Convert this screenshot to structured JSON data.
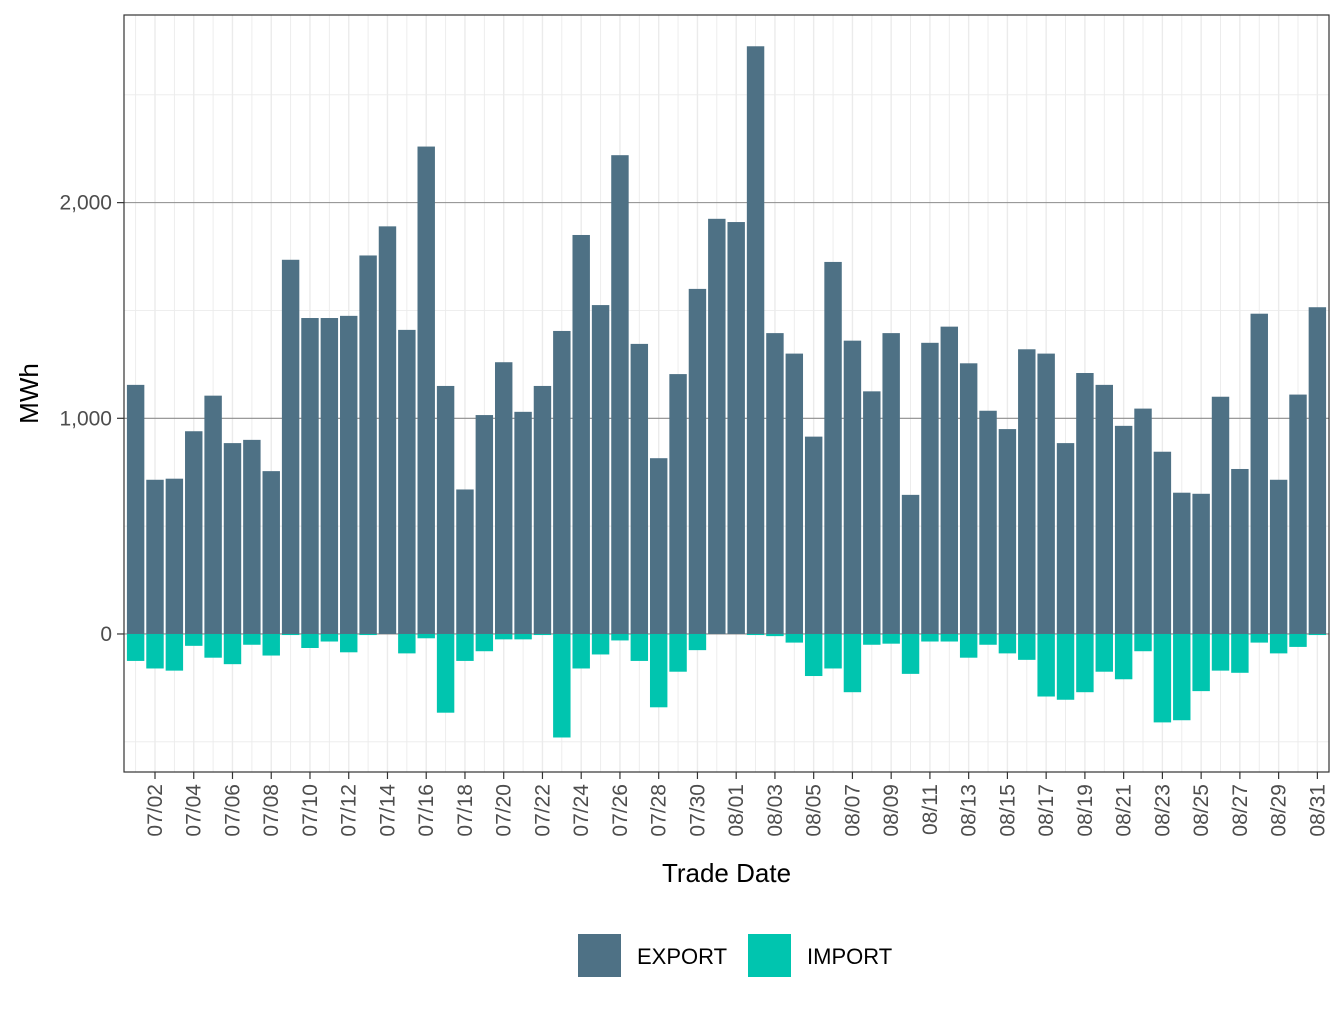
{
  "chart_data": {
    "type": "bar",
    "stacked": true,
    "xlabel": "Trade Date",
    "ylabel": "MWh",
    "ylim": [
      -640,
      2870
    ],
    "y_ticks": [
      0,
      1000,
      2000
    ],
    "y_tick_labels": [
      "0",
      "1,000",
      "2,000"
    ],
    "grid": true,
    "legend_position": "bottom",
    "categories": [
      "07/01",
      "07/02",
      "07/03",
      "07/04",
      "07/05",
      "07/06",
      "07/07",
      "07/08",
      "07/09",
      "07/10",
      "07/11",
      "07/12",
      "07/13",
      "07/14",
      "07/15",
      "07/16",
      "07/17",
      "07/18",
      "07/19",
      "07/20",
      "07/21",
      "07/22",
      "07/23",
      "07/24",
      "07/25",
      "07/26",
      "07/27",
      "07/28",
      "07/29",
      "07/30",
      "07/31",
      "08/01",
      "08/02",
      "08/03",
      "08/04",
      "08/05",
      "08/06",
      "08/07",
      "08/08",
      "08/09",
      "08/10",
      "08/11",
      "08/12",
      "08/13",
      "08/14",
      "08/15",
      "08/16",
      "08/17",
      "08/18",
      "08/19",
      "08/20",
      "08/21",
      "08/22",
      "08/23",
      "08/24",
      "08/25",
      "08/26",
      "08/27",
      "08/28",
      "08/29",
      "08/30",
      "08/31"
    ],
    "x_tick_labels": [
      "07/02",
      "07/04",
      "07/06",
      "07/08",
      "07/10",
      "07/12",
      "07/14",
      "07/16",
      "07/18",
      "07/20",
      "07/22",
      "07/24",
      "07/26",
      "07/28",
      "07/30",
      "08/01",
      "08/03",
      "08/05",
      "08/07",
      "08/09",
      "08/11",
      "08/13",
      "08/15",
      "08/17",
      "08/19",
      "08/21",
      "08/23",
      "08/25",
      "08/27",
      "08/29",
      "08/31"
    ],
    "series": [
      {
        "name": "EXPORT",
        "color": "#4e7185",
        "values": [
          1155,
          715,
          720,
          940,
          1105,
          885,
          900,
          755,
          1735,
          1465,
          1465,
          1475,
          1755,
          1890,
          1410,
          2260,
          1150,
          670,
          1015,
          1260,
          1030,
          1150,
          1405,
          1850,
          1525,
          2220,
          1345,
          815,
          1205,
          1600,
          1925,
          1910,
          2725,
          1395,
          1300,
          915,
          1725,
          1360,
          1125,
          1395,
          645,
          1350,
          1425,
          1255,
          1035,
          950,
          1320,
          1300,
          885,
          1210,
          1155,
          965,
          1045,
          845,
          655,
          650,
          1100,
          765,
          1485,
          715,
          1110,
          1515
        ]
      },
      {
        "name": "IMPORT",
        "color": "#00c5af",
        "values": [
          -125,
          -160,
          -170,
          -55,
          -110,
          -140,
          -50,
          -100,
          -5,
          -65,
          -35,
          -85,
          -5,
          0,
          -90,
          -20,
          -365,
          -125,
          -80,
          -25,
          -25,
          -5,
          -480,
          -160,
          -95,
          -30,
          -125,
          -340,
          -175,
          -75,
          0,
          0,
          -5,
          -10,
          -40,
          -195,
          -160,
          -270,
          -50,
          -45,
          -185,
          -35,
          -35,
          -110,
          -50,
          -90,
          -120,
          -290,
          -305,
          -270,
          -175,
          -210,
          -80,
          -410,
          -400,
          -265,
          -170,
          -180,
          -40,
          -90,
          -60,
          -5
        ]
      }
    ]
  }
}
